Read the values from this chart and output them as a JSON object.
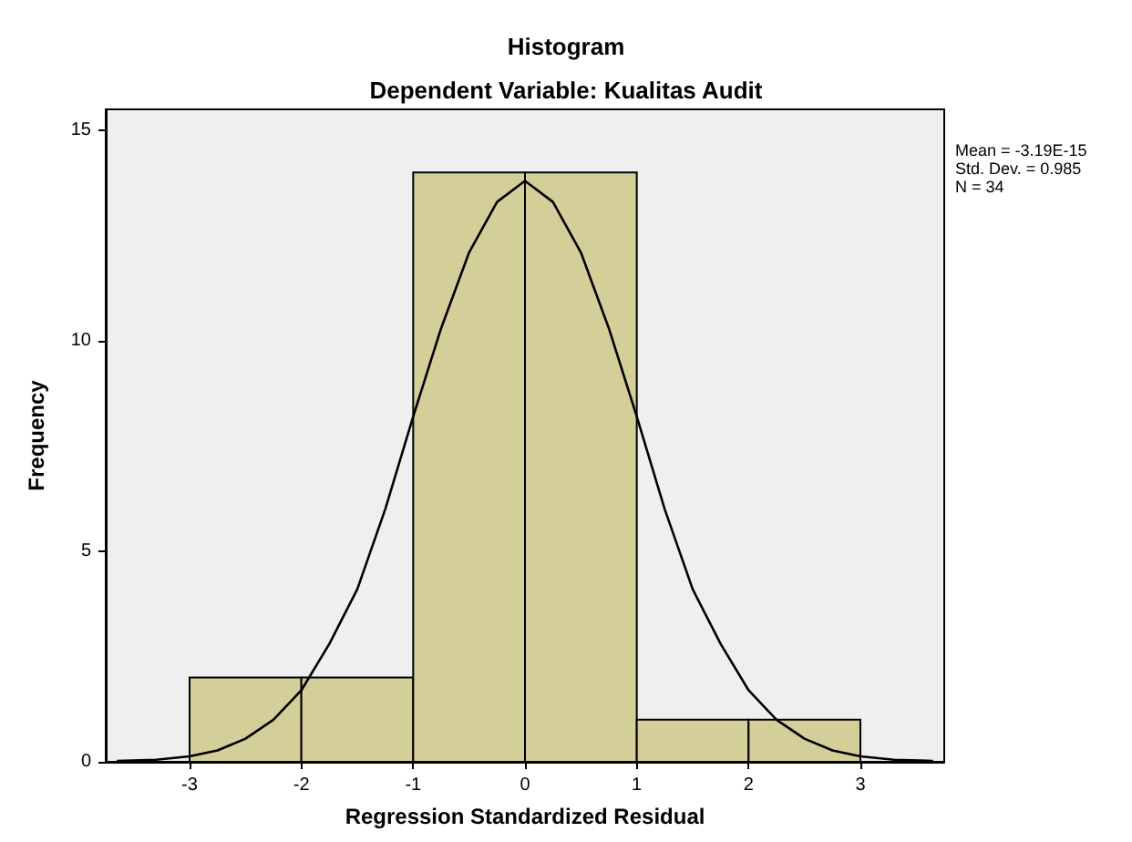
{
  "chart_data": {
    "type": "histogram",
    "title": "Histogram",
    "subtitle": "Dependent Variable: Kualitas Audit",
    "xlabel": "Regression Standardized Residual",
    "ylabel": "Frequency",
    "bins": [
      -3,
      -2,
      -1,
      0,
      1,
      2,
      3
    ],
    "values": [
      2,
      2,
      14,
      14,
      1,
      1
    ],
    "color": "#d4cf98",
    "series": [
      {
        "type": "line",
        "color": "#000000",
        "x": [
          -3.65,
          -3.3,
          -3,
          -2.75,
          -2.5,
          -2.25,
          -2,
          -1.75,
          -1.5,
          -1.25,
          -1,
          -0.75,
          -0.5,
          -0.25,
          0,
          0.25,
          0.5,
          0.75,
          1,
          1.25,
          1.5,
          1.75,
          2,
          2.25,
          2.5,
          2.75,
          3,
          3.3,
          3.65
        ],
        "values": [
          0.02,
          0.05,
          0.13,
          0.27,
          0.55,
          1,
          1.7,
          2.8,
          4.1,
          6,
          8.2,
          10.3,
          12.1,
          13.3,
          13.8,
          13.3,
          12.1,
          10.3,
          8.2,
          6,
          4.1,
          2.8,
          1.7,
          1,
          0.55,
          0.27,
          0.13,
          0.05,
          0.02
        ]
      }
    ],
    "xlim": [
      -3.75,
      3.75
    ],
    "xticks": [
      -3,
      -2,
      -1,
      0,
      1,
      2,
      3
    ],
    "ylim": [
      0,
      15.5
    ],
    "yticks": [
      0,
      5,
      10,
      15
    ],
    "grid": false,
    "marker": "none",
    "line_style": "solid",
    "annotations": [
      "Mean = -3.19E-15",
      "Std. Dev. = 0.985",
      "N = 34"
    ]
  }
}
